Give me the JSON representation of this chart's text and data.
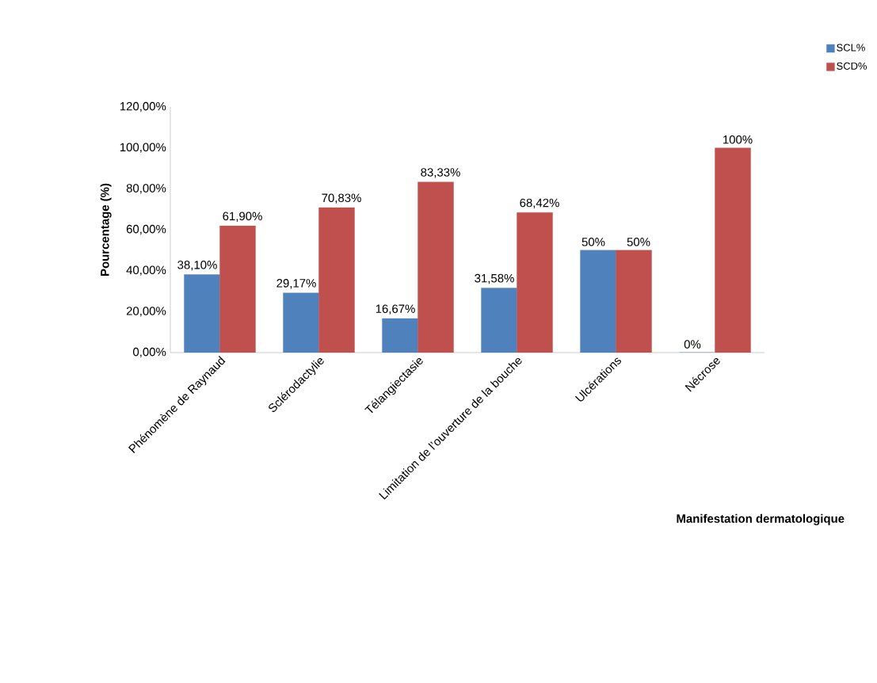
{
  "chart_data": {
    "type": "bar",
    "xlabel": "Manifestation dermatologique",
    "ylabel": "Pourcentage (%)",
    "categories": [
      "Phénomène de Raynaud",
      "Sclérodactylie",
      "Télangiectasie",
      "Limitation de l’ouverture de la bouche",
      "Ulcérations",
      "Nécrose"
    ],
    "series": [
      {
        "name": "SCL%",
        "color": "#4f81bd",
        "values": [
          38.1,
          29.17,
          16.67,
          31.58,
          50,
          0
        ],
        "value_labels": [
          "38,10%",
          "29,17%",
          "16,67%",
          "31,58%",
          "50%",
          "0%"
        ]
      },
      {
        "name": "SCD%",
        "color": "#c0504d",
        "values": [
          61.9,
          70.83,
          83.33,
          68.42,
          50,
          100
        ],
        "value_labels": [
          "61,90%",
          "70,83%",
          "83,33%",
          "68,42%",
          "50%",
          "100%"
        ]
      }
    ],
    "ylim": [
      0,
      120
    ],
    "yticks": [
      {
        "value": 0,
        "label": "0,00%"
      },
      {
        "value": 20,
        "label": "20,00%"
      },
      {
        "value": 40,
        "label": "40,00%"
      },
      {
        "value": 60,
        "label": "60,00%"
      },
      {
        "value": 80,
        "label": "80,00%"
      },
      {
        "value": 100,
        "label": "100,00%"
      },
      {
        "value": 120,
        "label": "120,00%"
      }
    ],
    "legend": "top right"
  }
}
